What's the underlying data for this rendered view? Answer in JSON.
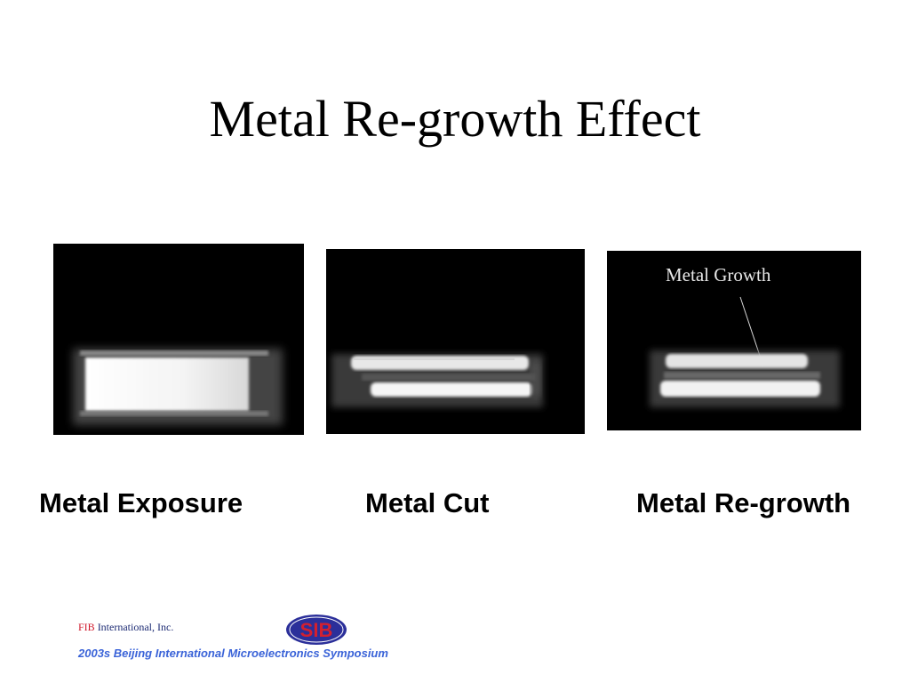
{
  "slide": {
    "title": "Metal Re-growth Effect"
  },
  "panels": [
    {
      "caption": "Metal Exposure"
    },
    {
      "caption": "Metal Cut"
    },
    {
      "caption": "Metal Re-growth",
      "annotation": "Metal Growth"
    }
  ],
  "footer": {
    "brand": "FIB",
    "company": " International, Inc.",
    "symposium": "2003s Beijing International Microelectronics Symposium",
    "logo_text": "SIB"
  },
  "colors": {
    "brand_red": "#d0182b",
    "symposium_blue": "#3a63d8",
    "logo_blue": "#2b2f9a",
    "logo_red": "#d3202f"
  }
}
